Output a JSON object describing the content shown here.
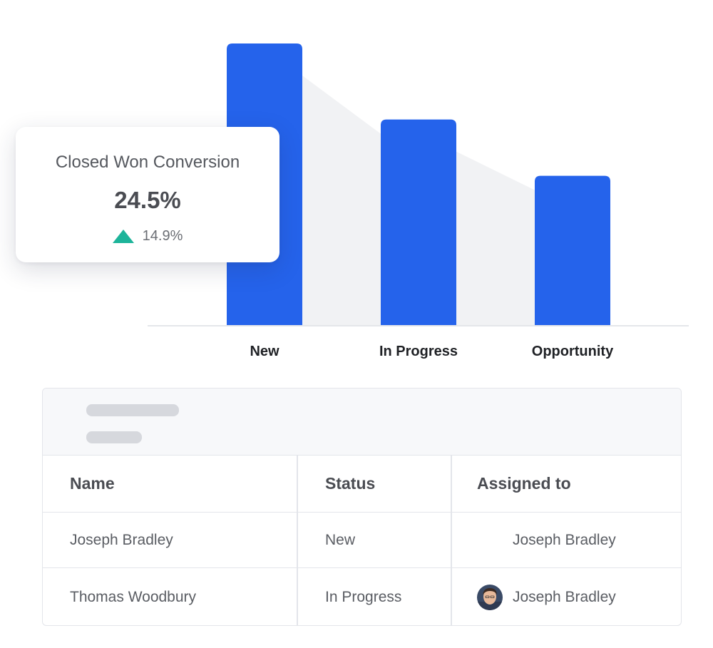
{
  "chart_data": {
    "type": "bar",
    "categories": [
      "New",
      "In Progress",
      "Opportunity"
    ],
    "values": [
      100,
      73,
      53
    ],
    "ylim": [
      0,
      100
    ],
    "grid": false,
    "bar_color": "#2563eb",
    "funnel_fill_color": "#f1f2f4"
  },
  "kpi": {
    "title": "Closed Won Conversion",
    "value": "24.5%",
    "delta": "14.9%",
    "delta_icon": "triangle-up-icon",
    "delta_color": "#1db49a"
  },
  "table": {
    "columns": [
      "Name",
      "Status",
      "Assigned to"
    ],
    "rows": [
      {
        "name": "Joseph Bradley",
        "status": "New",
        "assigned": "Joseph Bradley",
        "avatar": false
      },
      {
        "name": "Thomas Woodbury",
        "status": "In Progress",
        "assigned": "Joseph Bradley",
        "avatar": true
      }
    ]
  }
}
